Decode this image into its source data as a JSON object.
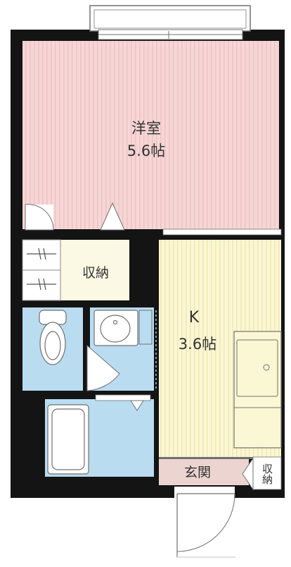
{
  "rooms": {
    "western_room": {
      "name": "洋室",
      "size": "5.6帖"
    },
    "closet": {
      "name": "収納"
    },
    "kitchen": {
      "name": "K",
      "size": "3.6帖"
    },
    "entrance": {
      "name": "玄関"
    },
    "entrance_storage": {
      "name": "収納"
    }
  },
  "colors": {
    "wall": "#141414",
    "western_room": "#f6d6d6",
    "western_room_stripe": "#eec4c4",
    "kitchen": "#fbf7d4",
    "kitchen_stripe": "#efe8b4",
    "closet": "#fbf8e4",
    "wet_area": "#b9dcf1",
    "entrance": "#ecd4d0",
    "line": "#707070"
  }
}
